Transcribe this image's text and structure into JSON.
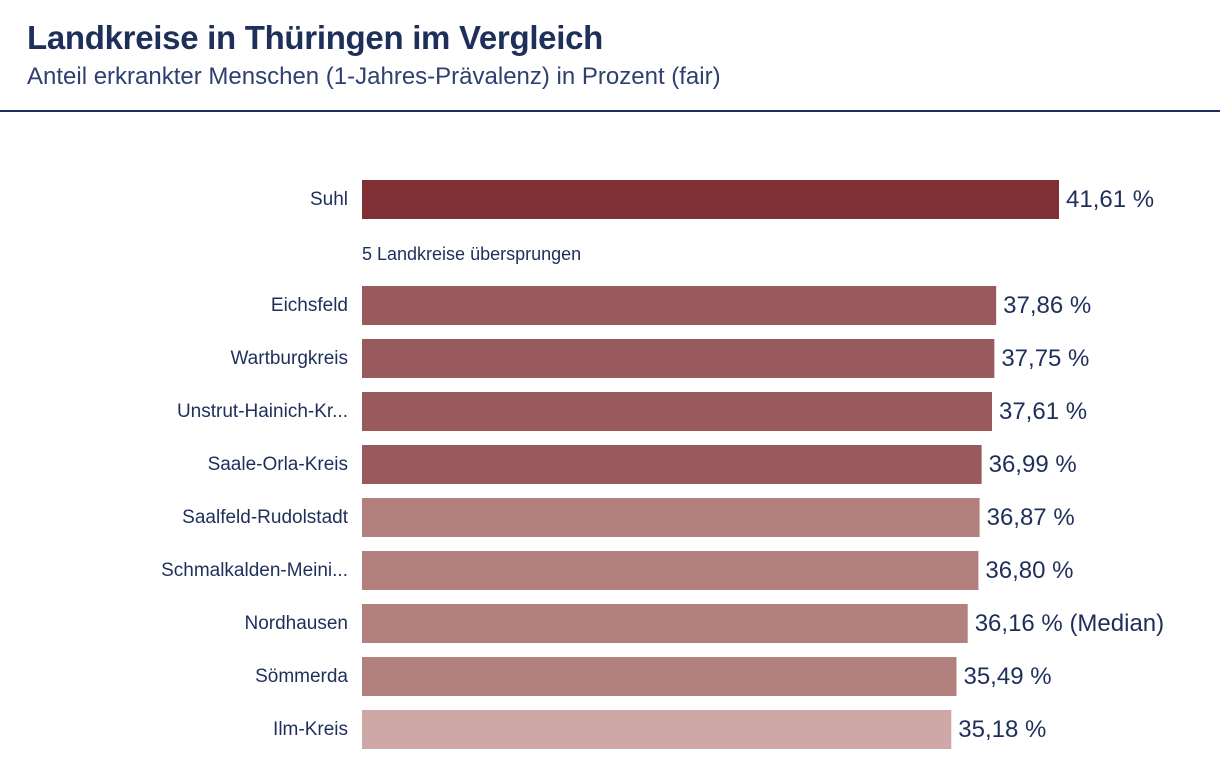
{
  "chart_data": {
    "type": "bar",
    "orientation": "horizontal",
    "title": "Landkreise in Thüringen im Vergleich",
    "subtitle": "Anteil erkrankter Menschen (1-Jahres-Prävalenz) in Prozent (fair)",
    "xlim": [
      0,
      41.61
    ],
    "grid": false,
    "legend": "none",
    "skip_note": "5 Landkreise übersprungen",
    "skip_after_index": 0,
    "unit": "%",
    "median_suffix": "(Median)",
    "colors": {
      "top": "#7f3034",
      "high": "#985a5c",
      "mid": "#b2807d",
      "low": "#cea8a7"
    },
    "items": [
      {
        "label": "Suhl",
        "value": 41.61,
        "value_label": "41,61 %",
        "color": "#7f3034",
        "median": false
      },
      {
        "label": "Eichsfeld",
        "value": 37.86,
        "value_label": "37,86 %",
        "color": "#985a5c",
        "median": false
      },
      {
        "label": "Wartburgkreis",
        "value": 37.75,
        "value_label": "37,75 %",
        "color": "#985a5c",
        "median": false
      },
      {
        "label": "Unstrut-Hainich-Kr...",
        "value": 37.61,
        "value_label": "37,61 %",
        "color": "#985a5c",
        "median": false
      },
      {
        "label": "Saale-Orla-Kreis",
        "value": 36.99,
        "value_label": "36,99 %",
        "color": "#985a5c",
        "median": false
      },
      {
        "label": "Saalfeld-Rudolstadt",
        "value": 36.87,
        "value_label": "36,87 %",
        "color": "#b2807d",
        "median": false
      },
      {
        "label": "Schmalkalden-Meini...",
        "value": 36.8,
        "value_label": "36,80 %",
        "color": "#b2807d",
        "median": false
      },
      {
        "label": "Nordhausen",
        "value": 36.16,
        "value_label": "36,16 % (Median)",
        "color": "#b2807d",
        "median": true
      },
      {
        "label": "Sömmerda",
        "value": 35.49,
        "value_label": "35,49 %",
        "color": "#b2807d",
        "median": false
      },
      {
        "label": "Ilm-Kreis",
        "value": 35.18,
        "value_label": "35,18 %",
        "color": "#cea8a7",
        "median": false
      }
    ]
  }
}
